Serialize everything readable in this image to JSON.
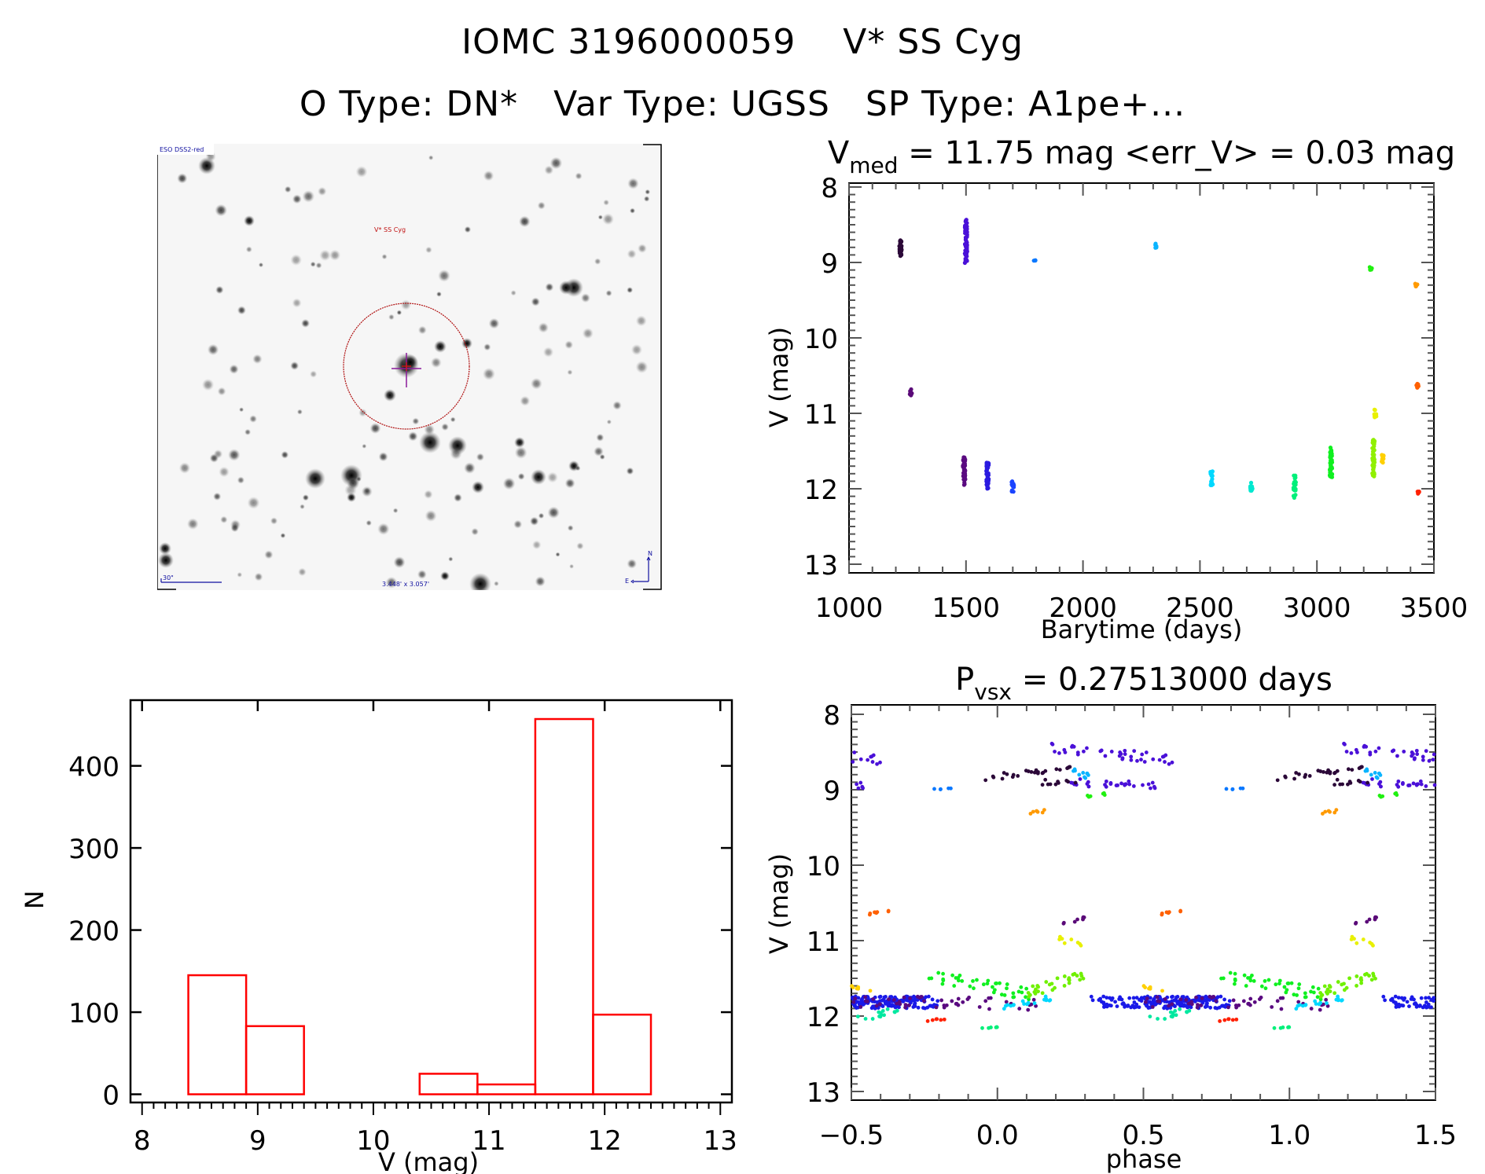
{
  "header": {
    "title_line1": "IOMC 3196000059    V* SS Cyg",
    "title_line2": "O Type: DN*   Var Type: UGSS   SP Type: A1pe+..."
  },
  "sky_image": {
    "survey_label": "ESO DSS2-red",
    "target_label": "V* SS Cyg",
    "scale_label": "30\"",
    "fov_label": "3.448' x 3.057'",
    "north_label": "N",
    "east_label": "E",
    "target_circle_color": "#b01010",
    "crosshair_color": "#8a1a9a",
    "label_color": "#1010a0"
  },
  "chart_data": [
    {
      "id": "light_curve",
      "type": "scatter",
      "title_main": "V",
      "title_sub": "med",
      "title_rest": " = 11.75 mag <err_V> = 0.03 mag",
      "xlabel": "Barytime (days)",
      "ylabel": "V (mag)",
      "xlim": [
        1000,
        3500
      ],
      "ylim": [
        8,
        13
      ],
      "y_inverted": true,
      "xticks": [
        1000,
        1500,
        2000,
        2500,
        3000,
        3500
      ],
      "yticks": [
        8,
        9,
        10,
        11,
        12,
        13
      ],
      "grid": false,
      "series": [
        {
          "x": 1220,
          "mag_min": 8.68,
          "mag_max": 8.92,
          "n": 30,
          "color": "#2b0838"
        },
        {
          "x": 1265,
          "mag_min": 10.68,
          "mag_max": 10.78,
          "n": 8,
          "color": "#5a0a78"
        },
        {
          "x": 1492,
          "mag_min": 11.58,
          "mag_max": 11.95,
          "n": 45,
          "color": "#5a0a80"
        },
        {
          "x": 1500,
          "mag_min": 8.42,
          "mag_max": 9.02,
          "n": 60,
          "color": "#4a10d8"
        },
        {
          "x": 1592,
          "mag_min": 11.65,
          "mag_max": 12.0,
          "n": 50,
          "color": "#2a1ae0"
        },
        {
          "x": 1700,
          "mag_min": 11.9,
          "mag_max": 12.05,
          "n": 12,
          "color": "#1a44ff"
        },
        {
          "x": 1795,
          "mag_min": 8.96,
          "mag_max": 8.99,
          "n": 4,
          "color": "#0a78ff"
        },
        {
          "x": 2310,
          "mag_min": 8.74,
          "mag_max": 8.82,
          "n": 6,
          "color": "#0ab4ff"
        },
        {
          "x": 2550,
          "mag_min": 11.74,
          "mag_max": 11.96,
          "n": 18,
          "color": "#00d8ff"
        },
        {
          "x": 2720,
          "mag_min": 11.92,
          "mag_max": 12.03,
          "n": 12,
          "color": "#00e8d0"
        },
        {
          "x": 2905,
          "mag_min": 11.8,
          "mag_max": 12.15,
          "n": 24,
          "color": "#00f07a"
        },
        {
          "x": 3060,
          "mag_min": 11.45,
          "mag_max": 11.85,
          "n": 60,
          "color": "#10f020"
        },
        {
          "x": 3230,
          "mag_min": 9.05,
          "mag_max": 9.1,
          "n": 6,
          "color": "#20f010"
        },
        {
          "x": 3242,
          "mag_min": 11.35,
          "mag_max": 11.85,
          "n": 45,
          "color": "#90f000"
        },
        {
          "x": 3250,
          "mag_min": 10.95,
          "mag_max": 11.07,
          "n": 10,
          "color": "#e8f000"
        },
        {
          "x": 3282,
          "mag_min": 11.55,
          "mag_max": 11.67,
          "n": 10,
          "color": "#ffd000"
        },
        {
          "x": 3425,
          "mag_min": 9.28,
          "mag_max": 9.32,
          "n": 6,
          "color": "#ff9a00"
        },
        {
          "x": 3430,
          "mag_min": 10.6,
          "mag_max": 10.66,
          "n": 8,
          "color": "#ff6000"
        },
        {
          "x": 3435,
          "mag_min": 12.03,
          "mag_max": 12.07,
          "n": 6,
          "color": "#ff2000"
        }
      ]
    },
    {
      "id": "histogram",
      "type": "bar",
      "title": "",
      "xlabel": "V (mag)",
      "ylabel": "N",
      "xlim": [
        7.9,
        13.1
      ],
      "ylim": [
        -10,
        480
      ],
      "xticks": [
        8,
        9,
        10,
        11,
        12,
        13
      ],
      "yticks": [
        0,
        100,
        200,
        300,
        400
      ],
      "bar_color": "#ff0000",
      "bin_edges": [
        8.4,
        8.9,
        9.4,
        9.9,
        10.4,
        10.9,
        11.4,
        11.9,
        12.4
      ],
      "values": [
        145,
        83,
        0,
        0,
        25,
        12,
        457,
        97
      ],
      "grid": false
    },
    {
      "id": "phase_curve",
      "type": "scatter",
      "title_main": "P",
      "title_sub": "vsx",
      "title_rest": " = 0.27513000 days",
      "xlabel": "phase",
      "ylabel": "V (mag)",
      "xlim": [
        -0.5,
        1.5
      ],
      "ylim": [
        8,
        13
      ],
      "y_inverted": true,
      "xticks": [
        -0.5,
        0.0,
        0.5,
        1.0,
        1.5
      ],
      "xtick_labels": [
        "−0.5",
        "0.0",
        "0.5",
        "1.0",
        "1.5"
      ],
      "yticks": [
        8,
        9,
        10,
        11,
        12,
        13
      ],
      "grid": false,
      "period_days": 0.27513,
      "series": [
        {
          "phase_min": 0.18,
          "phase_max": 0.6,
          "mag_start": 8.45,
          "mag_end": 8.6,
          "scatter": 0.07,
          "n": 40,
          "color": "#4a10d8"
        },
        {
          "phase_min": 0.25,
          "phase_max": 0.55,
          "mag_start": 8.9,
          "mag_end": 8.95,
          "scatter": 0.05,
          "n": 30,
          "color": "#4a10d8"
        },
        {
          "phase_min": -0.05,
          "phase_max": 0.27,
          "mag_start": 8.85,
          "mag_end": 8.7,
          "scatter": 0.04,
          "n": 25,
          "color": "#2b0838"
        },
        {
          "phase_min": 0.15,
          "phase_max": 0.28,
          "mag_start": 8.9,
          "mag_end": 8.9,
          "scatter": 0.04,
          "n": 10,
          "color": "#2b0838"
        },
        {
          "phase_min": 0.26,
          "phase_max": 0.33,
          "mag_start": 8.75,
          "mag_end": 8.85,
          "scatter": 0.04,
          "n": 10,
          "color": "#0ab4ff"
        },
        {
          "phase_min": 0.29,
          "phase_max": 0.37,
          "mag_start": 9.1,
          "mag_end": 9.05,
          "scatter": 0.02,
          "n": 6,
          "color": "#20f010"
        },
        {
          "phase_min": -0.23,
          "phase_max": -0.15,
          "mag_start": 9.0,
          "mag_end": 8.98,
          "scatter": 0.01,
          "n": 5,
          "color": "#0a78ff"
        },
        {
          "phase_min": 0.09,
          "phase_max": 0.17,
          "mag_start": 9.32,
          "mag_end": 9.28,
          "scatter": 0.02,
          "n": 6,
          "color": "#ff9a00"
        },
        {
          "phase_min": -0.45,
          "phase_max": -0.37,
          "mag_start": 10.65,
          "mag_end": 10.6,
          "scatter": 0.02,
          "n": 8,
          "color": "#ff6000"
        },
        {
          "phase_min": 0.22,
          "phase_max": 0.3,
          "mag_start": 10.78,
          "mag_end": 10.7,
          "scatter": 0.02,
          "n": 8,
          "color": "#5a0a78"
        },
        {
          "phase_min": 0.21,
          "phase_max": 0.29,
          "mag_start": 10.98,
          "mag_end": 11.05,
          "scatter": 0.04,
          "n": 8,
          "color": "#e8f000"
        },
        {
          "phase_min": -0.5,
          "phase_max": -0.2,
          "mag_start": 11.82,
          "mag_end": 11.82,
          "scatter": 0.08,
          "n": 90,
          "color": "#1a1ae8"
        },
        {
          "phase_min": 0.32,
          "phase_max": 0.72,
          "mag_start": 11.82,
          "mag_end": 11.82,
          "scatter": 0.08,
          "n": 110,
          "color": "#1a1ae8"
        },
        {
          "phase_min": -0.25,
          "phase_max": 0.12,
          "mag_start": 11.45,
          "mag_end": 11.72,
          "scatter": 0.08,
          "n": 40,
          "color": "#10f020"
        },
        {
          "phase_min": 0.1,
          "phase_max": 0.3,
          "mag_start": 11.7,
          "mag_end": 11.45,
          "scatter": 0.07,
          "n": 30,
          "color": "#70f000"
        },
        {
          "phase_min": -0.5,
          "phase_max": 0.15,
          "mag_start": 11.8,
          "mag_end": 11.85,
          "scatter": 0.08,
          "n": 50,
          "color": "#5a0a80"
        },
        {
          "phase_min": -0.48,
          "phase_max": -0.34,
          "mag_start": 12.05,
          "mag_end": 11.9,
          "scatter": 0.05,
          "n": 14,
          "color": "#00e8a0"
        },
        {
          "phase_min": 0.0,
          "phase_max": 0.2,
          "mag_start": 11.9,
          "mag_end": 11.75,
          "scatter": 0.04,
          "n": 18,
          "color": "#00d8ff"
        },
        {
          "phase_min": -0.5,
          "phase_max": -0.43,
          "mag_start": 11.6,
          "mag_end": 11.65,
          "scatter": 0.03,
          "n": 6,
          "color": "#ffd000"
        },
        {
          "phase_min": -0.24,
          "phase_max": -0.18,
          "mag_start": 12.06,
          "mag_end": 12.04,
          "scatter": 0.01,
          "n": 6,
          "color": "#ff2000"
        },
        {
          "phase_min": -0.06,
          "phase_max": 0.02,
          "mag_start": 12.17,
          "mag_end": 12.14,
          "scatter": 0.01,
          "n": 6,
          "color": "#00f07a"
        }
      ]
    }
  ]
}
